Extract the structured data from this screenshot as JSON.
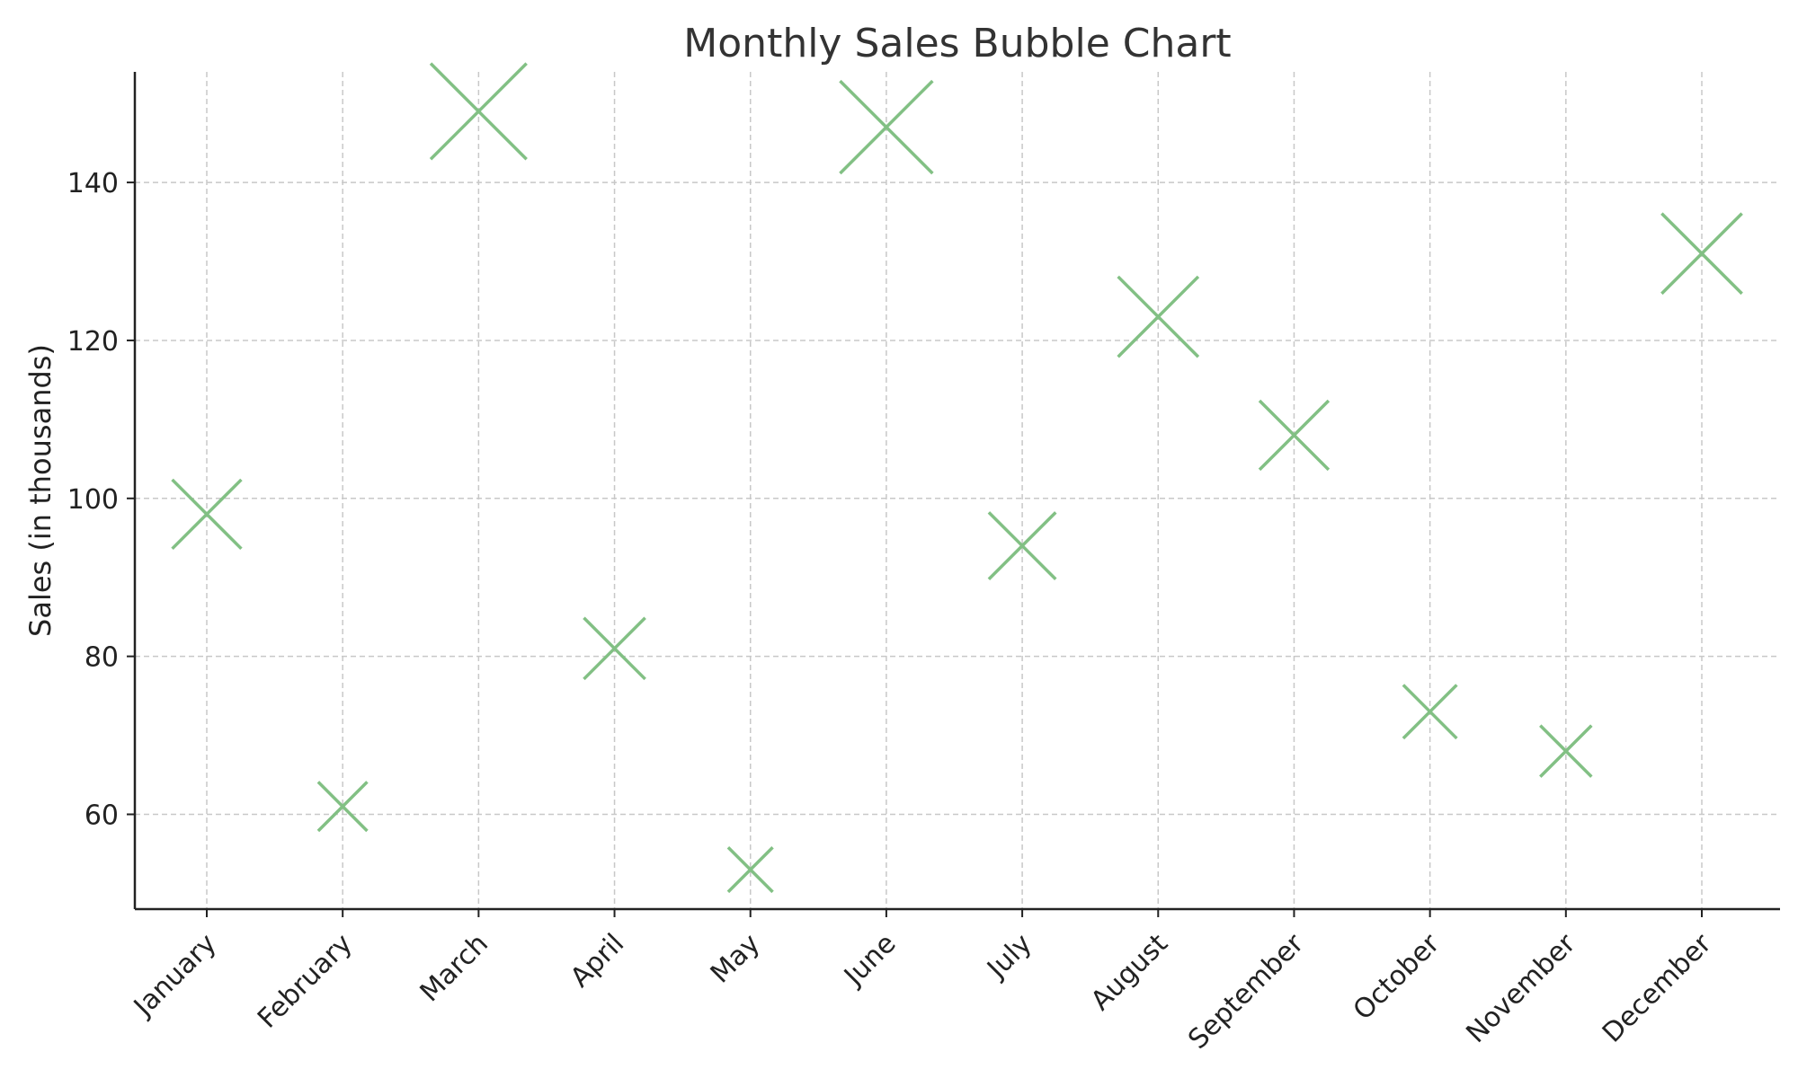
{
  "chart_data": {
    "type": "scatter",
    "title": "Monthly Sales Bubble Chart",
    "xlabel": "",
    "ylabel": "Sales (in thousands)",
    "categories": [
      "January",
      "February",
      "March",
      "April",
      "May",
      "June",
      "July",
      "August",
      "September",
      "October",
      "November",
      "December"
    ],
    "values": [
      98,
      61,
      149,
      81,
      53,
      147,
      94,
      123,
      108,
      73,
      68,
      131
    ],
    "marker_sizes": [
      0.62,
      0.44,
      0.86,
      0.55,
      0.4,
      0.83,
      0.6,
      0.72,
      0.62,
      0.48,
      0.46,
      0.72
    ],
    "marker": "x",
    "ylim": [
      48,
      154
    ],
    "yticks": [
      60,
      80,
      100,
      120,
      140
    ],
    "grid": true,
    "legend": "none",
    "colors": {
      "marker": "#82c084"
    }
  }
}
